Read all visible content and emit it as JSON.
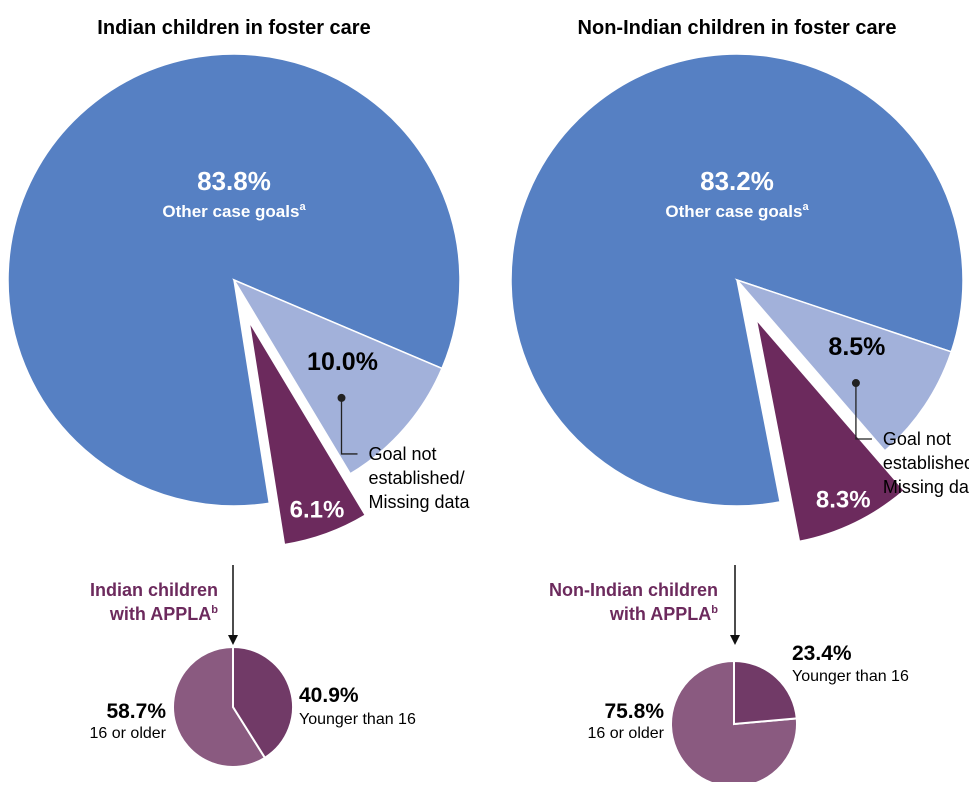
{
  "chart_data": [
    {
      "type": "pie",
      "title": "Indian children in foster care",
      "slices": [
        {
          "label": "Other case goals",
          "label_sup": "a",
          "value": 83.8,
          "value_label": "83.8%",
          "color": "#5680C3"
        },
        {
          "label": "Goal not established/ Missing data",
          "label_lines": [
            "Goal not",
            "established/",
            "Missing data"
          ],
          "value": 10.0,
          "value_label": "10.0%",
          "color": "#A2B1DA"
        },
        {
          "label": "APPLA",
          "value": 6.1,
          "value_label": "6.1%",
          "color": "#6C2A5D",
          "exploded": true
        }
      ],
      "breakdown": {
        "label_lines": [
          "Indian children",
          "with APPLA"
        ],
        "label_sup": "b",
        "slices": [
          {
            "label": "Younger than 16",
            "value": 40.9,
            "value_label": "40.9%",
            "color": "#713A67"
          },
          {
            "label": "16 or older",
            "value": 58.7,
            "value_label": "58.7%",
            "color": "#8A5A80"
          }
        ]
      }
    },
    {
      "type": "pie",
      "title": "Non-Indian children in foster care",
      "slices": [
        {
          "label": "Other case goals",
          "label_sup": "a",
          "value": 83.2,
          "value_label": "83.2%",
          "color": "#5680C3"
        },
        {
          "label": "Goal not established/ Missing data",
          "label_lines": [
            "Goal not",
            "established/",
            "Missing data"
          ],
          "value": 8.5,
          "value_label": "8.5%",
          "color": "#A2B1DA"
        },
        {
          "label": "APPLA",
          "value": 8.3,
          "value_label": "8.3%",
          "color": "#6C2A5D",
          "exploded": true
        }
      ],
      "breakdown": {
        "label_lines": [
          "Non-Indian children",
          "with APPLA"
        ],
        "label_sup": "b",
        "slices": [
          {
            "label": "Younger than 16",
            "value": 23.4,
            "value_label": "23.4%",
            "color": "#713A67"
          },
          {
            "label": "16 or older",
            "value": 75.8,
            "value_label": "75.8%",
            "color": "#8A5A80"
          }
        ]
      }
    }
  ]
}
